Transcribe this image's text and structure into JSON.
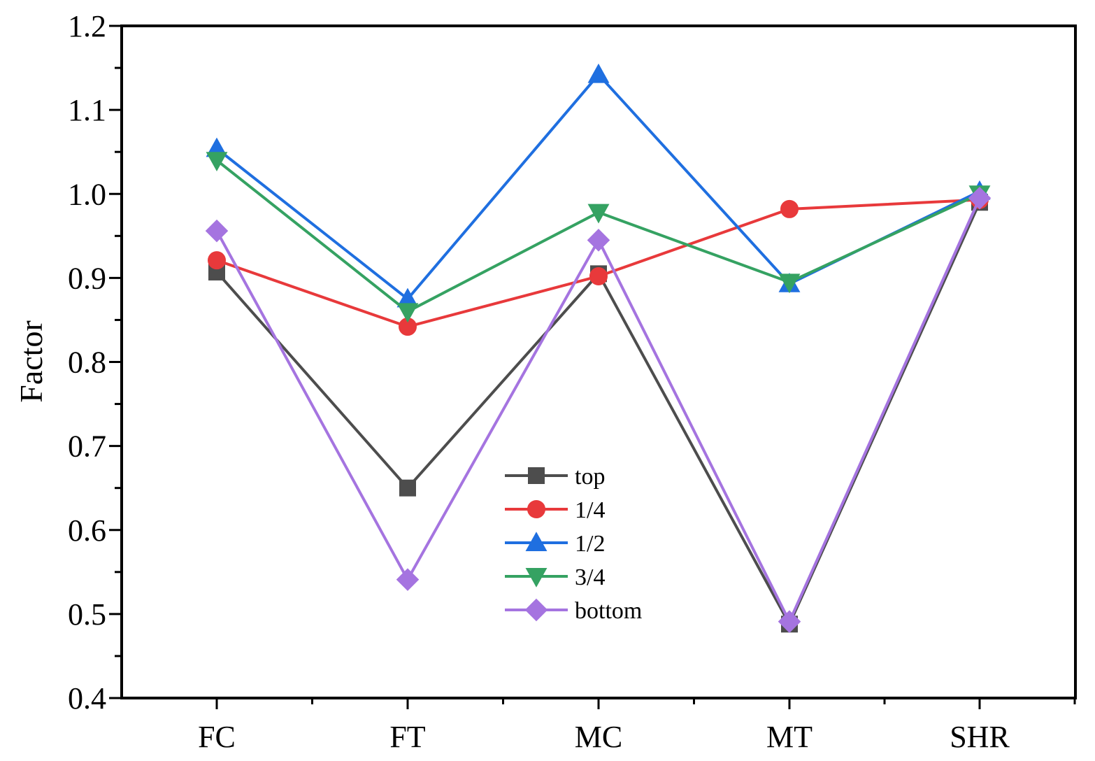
{
  "chart_data": {
    "type": "line",
    "title": "",
    "xlabel": "",
    "ylabel": "Factor",
    "categories": [
      "FC",
      "FT",
      "MC",
      "MT",
      "SHR"
    ],
    "ylim": [
      0.4,
      1.2
    ],
    "yticks": [
      0.4,
      0.5,
      0.6,
      0.7,
      0.8,
      0.9,
      1.0,
      1.1,
      1.2
    ],
    "ytick_labels": [
      "0.4",
      "0.5",
      "0.6",
      "0.7",
      "0.8",
      "0.9",
      "1.0",
      "1.1",
      "1.2"
    ],
    "grid": false,
    "legend_position": "center",
    "series": [
      {
        "name": "top",
        "color": "#4d4d4d",
        "marker": "square",
        "values": [
          0.907,
          0.65,
          0.905,
          0.488,
          0.99
        ]
      },
      {
        "name": "1/4",
        "color": "#e8393b",
        "marker": "circle",
        "values": [
          0.921,
          0.842,
          0.902,
          0.982,
          0.993
        ]
      },
      {
        "name": "1/2",
        "color": "#1f6fe0",
        "marker": "triangle-up",
        "values": [
          1.054,
          0.875,
          1.142,
          0.893,
          1.003
        ]
      },
      {
        "name": "3/4",
        "color": "#35a262",
        "marker": "triangle-down",
        "values": [
          1.04,
          0.86,
          0.978,
          0.895,
          1.0
        ]
      },
      {
        "name": "bottom",
        "color": "#a574e0",
        "marker": "diamond",
        "values": [
          0.956,
          0.541,
          0.945,
          0.491,
          0.995
        ]
      }
    ]
  }
}
